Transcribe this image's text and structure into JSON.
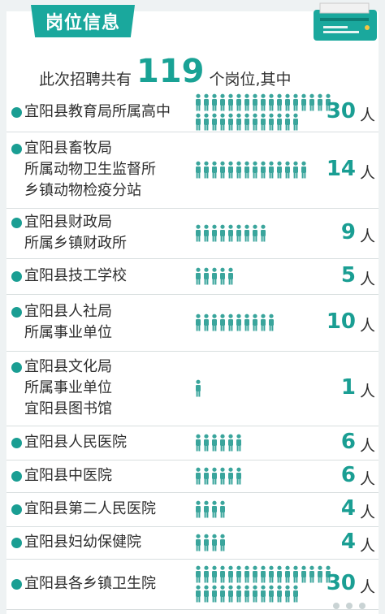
{
  "header": {
    "title": "岗位信息"
  },
  "intro": {
    "prefix": "此次招聘共有",
    "total": "119",
    "suffix": "个岗位,其中"
  },
  "unit": "人",
  "colors": {
    "accent": "#1a9e93",
    "person": "#3aa59c"
  },
  "rows": [
    {
      "lines": [
        "宜阳县教育局所属高中"
      ],
      "count": 30,
      "count_label": "30"
    },
    {
      "lines": [
        "宜阳县畜牧局",
        "所属动物卫生监督所",
        "乡镇动物检疫分站"
      ],
      "count": 14,
      "count_label": "14"
    },
    {
      "lines": [
        "宜阳县财政局",
        "所属乡镇财政所"
      ],
      "count": 9,
      "count_label": "9"
    },
    {
      "lines": [
        "宜阳县技工学校"
      ],
      "count": 5,
      "count_label": "5"
    },
    {
      "lines": [
        "宜阳县人社局",
        "所属事业单位"
      ],
      "count": 10,
      "count_label": "10"
    },
    {
      "lines": [
        "宜阳县文化局",
        "所属事业单位",
        "宜阳县图书馆"
      ],
      "count": 1,
      "count_label": "1"
    },
    {
      "lines": [
        "宜阳县人民医院"
      ],
      "count": 6,
      "count_label": "6"
    },
    {
      "lines": [
        "宜阳县中医院"
      ],
      "count": 6,
      "count_label": "6"
    },
    {
      "lines": [
        "宜阳县第二人民医院"
      ],
      "count": 4,
      "count_label": "4"
    },
    {
      "lines": [
        "宜阳县妇幼保健院"
      ],
      "count": 4,
      "count_label": "4"
    },
    {
      "lines": [
        "宜阳县各乡镇卫生院"
      ],
      "count": 30,
      "count_label": "30"
    }
  ]
}
